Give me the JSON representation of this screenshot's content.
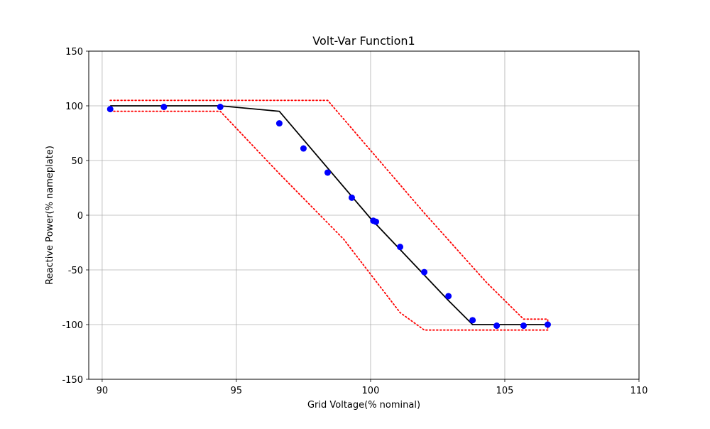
{
  "chart_data": {
    "type": "line",
    "title": "Volt-Var Function1",
    "xlabel": "Grid Voltage(% nominal)",
    "ylabel": "Reactive Power(% nameplate)",
    "xlim": [
      89.5,
      110
    ],
    "ylim": [
      -150,
      150
    ],
    "xticks": [
      90,
      95,
      100,
      105,
      110
    ],
    "yticks": [
      -150,
      -100,
      -50,
      0,
      50,
      100,
      150
    ],
    "grid": true,
    "series": [
      {
        "kind": "line",
        "style": "solid",
        "color": "#000000",
        "x": [
          90.3,
          94.4,
          96.6,
          100.0,
          102.9,
          103.8,
          106.6
        ],
        "y": [
          100,
          100,
          95,
          -3,
          -78,
          -100,
          -100
        ]
      },
      {
        "kind": "line",
        "style": "dotted",
        "color": "#ff0000",
        "x": [
          90.3,
          98.4,
          102.0,
          104.3,
          105.7,
          106.6,
          106.6
        ],
        "y": [
          105,
          105,
          2,
          -61,
          -95,
          -95,
          -105
        ]
      },
      {
        "kind": "line",
        "style": "dotted",
        "color": "#ff0000",
        "x": [
          90.3,
          94.4,
          96.6,
          99.0,
          101.1,
          102.0,
          106.6
        ],
        "y": [
          95,
          95,
          38,
          -22,
          -89,
          -105,
          -105
        ]
      },
      {
        "kind": "scatter",
        "color": "#0000ff",
        "x": [
          90.3,
          92.3,
          94.4,
          96.6,
          97.5,
          98.4,
          99.3,
          100.1,
          100.2,
          101.1,
          102.0,
          102.9,
          103.8,
          104.7,
          105.7,
          106.6
        ],
        "y": [
          97,
          99,
          99,
          84,
          61,
          39,
          16,
          -5,
          -6,
          -29,
          -52,
          -74,
          -96,
          -101,
          -101,
          -100
        ]
      }
    ]
  }
}
